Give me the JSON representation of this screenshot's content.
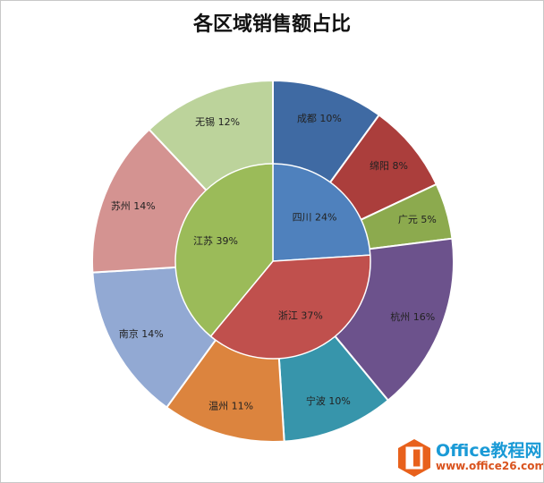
{
  "chart_data": {
    "type": "pie",
    "subtype": "double-ring (sunburst)",
    "title": "各区域销售额占比",
    "start_angle": "12 o'clock, clockwise",
    "inner": [
      {
        "label": "四川",
        "value": 24,
        "display": "24%",
        "color": "#4f81bd"
      },
      {
        "label": "浙江",
        "value": 37,
        "display": "37%",
        "color": "#c0504d"
      },
      {
        "label": "江苏",
        "value": 39,
        "display": "39%",
        "color": "#9bbb59"
      }
    ],
    "outer": [
      {
        "label": "成都",
        "value": 10,
        "display": "10%",
        "color": "#3f6aa3"
      },
      {
        "label": "绵阳",
        "value": 8,
        "display": "8%",
        "color": "#ab3e3c"
      },
      {
        "label": "广元",
        "value": 5,
        "display": "5%",
        "color": "#8caa4e"
      },
      {
        "label": "杭州",
        "value": 16,
        "display": "16%",
        "color": "#6c528c"
      },
      {
        "label": "宁波",
        "value": 10,
        "display": "10%",
        "color": "#3795ab"
      },
      {
        "label": "温州",
        "value": 11,
        "display": "11%",
        "color": "#dc843e"
      },
      {
        "label": "南京",
        "value": 14,
        "display": "14%",
        "color": "#92a9d3"
      },
      {
        "label": "苏州",
        "value": 14,
        "display": "14%",
        "color": "#d49391"
      },
      {
        "label": "无锡",
        "value": 12,
        "display": "12%",
        "color": "#bcd39b"
      }
    ],
    "legend": "none"
  },
  "watermark": {
    "name": "Office教程网",
    "url": "www.office26.com",
    "color_primary": "#1a9ad6",
    "color_secondary": "#d9531e"
  }
}
